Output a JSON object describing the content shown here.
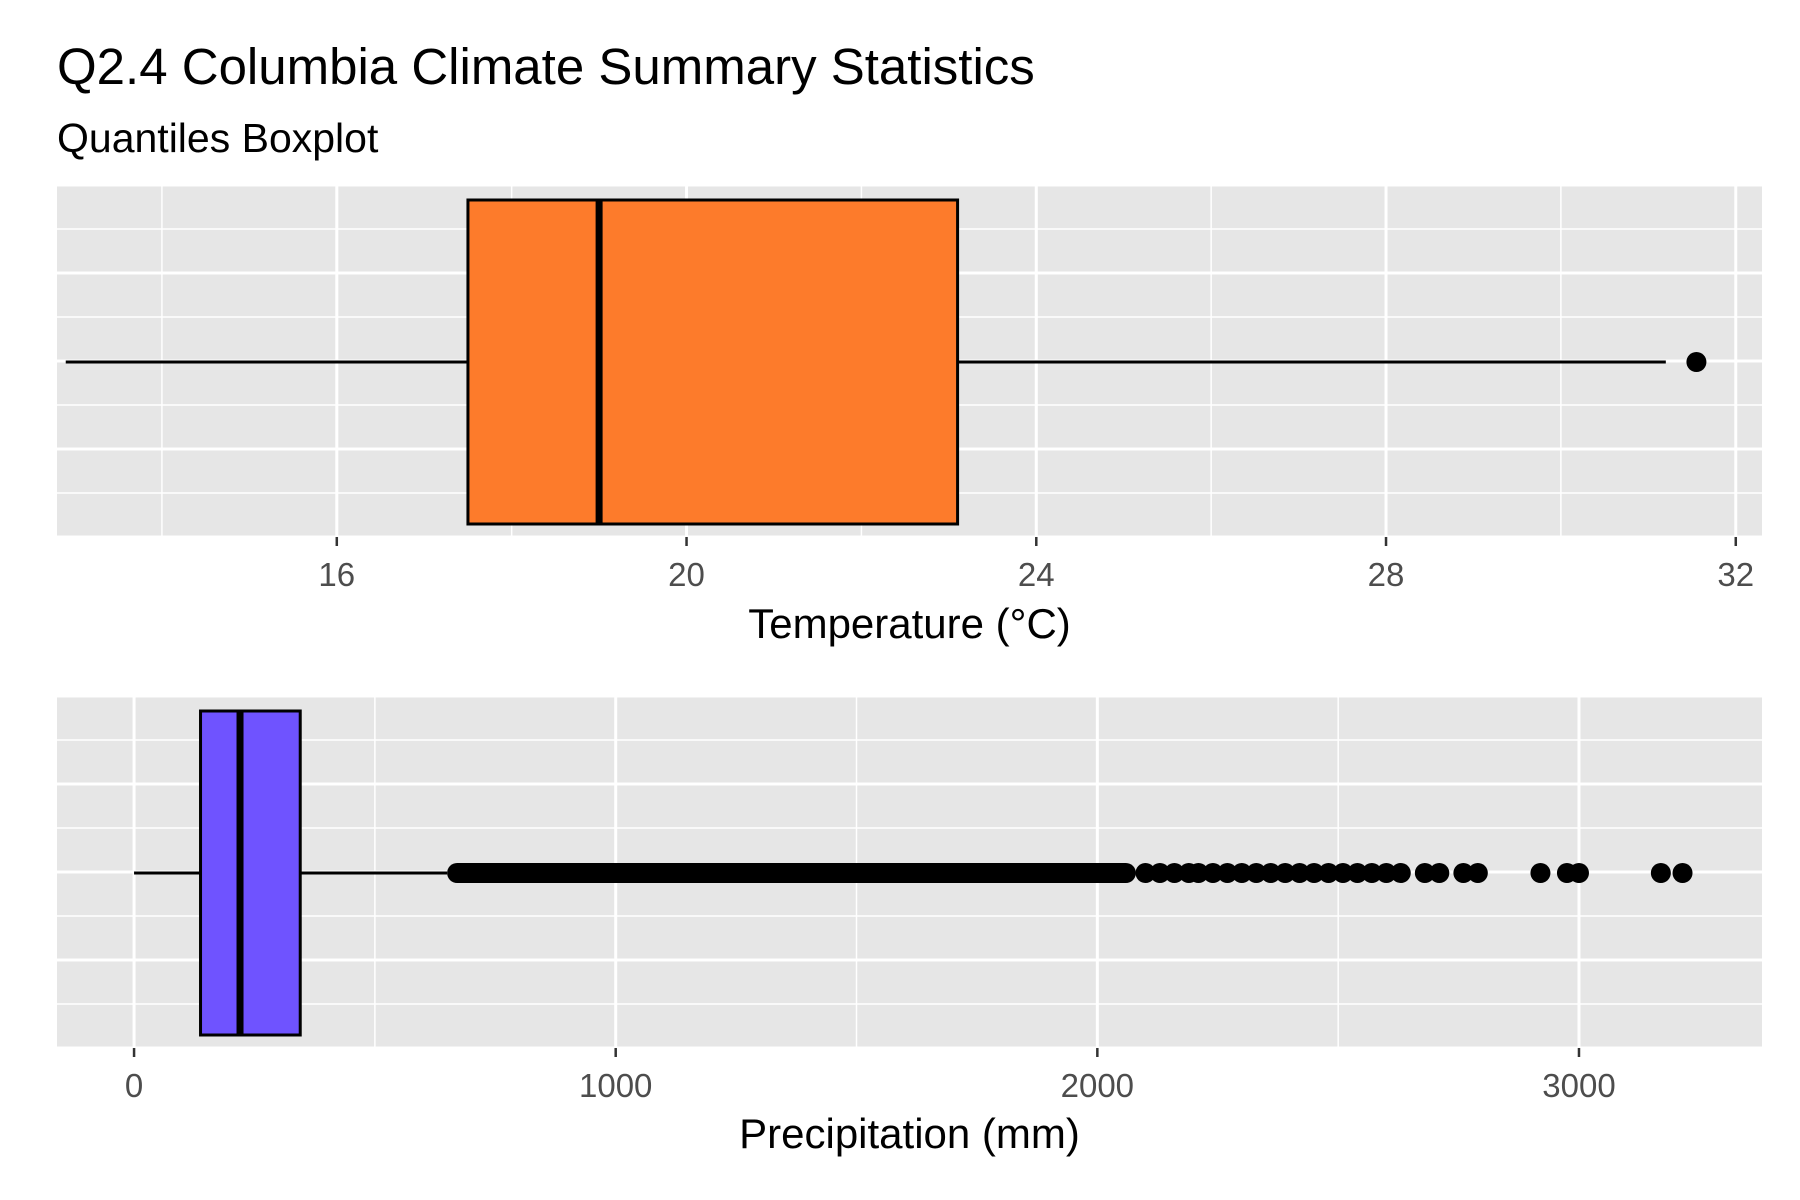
{
  "title": "Q2.4 Columbia Climate Summary Statistics",
  "subtitle": "Quantiles Boxplot",
  "colors": {
    "panel_bg": "#e6e6e6",
    "grid": "#ffffff",
    "temperature_box": "#fd7b2b",
    "precipitation_box": "#6f53ff",
    "outline": "#000000"
  },
  "chart_data": [
    {
      "type": "boxplot",
      "orientation": "horizontal",
      "xlabel": "Temperature (°C)",
      "xlim": [
        12.8,
        32.3
      ],
      "ticks": [
        16,
        20,
        24,
        28,
        32
      ],
      "tick_labels": [
        "16",
        "20",
        "24",
        "28",
        "32"
      ],
      "grid": true,
      "color": "#fd7b2b",
      "whisker_low": 12.9,
      "q1": 17.5,
      "median": 19.0,
      "q3": 23.1,
      "whisker_high": 31.2,
      "outliers": [
        31.55
      ]
    },
    {
      "type": "boxplot",
      "orientation": "horizontal",
      "xlabel": "Precipitation (mm)",
      "xlim": [
        -160,
        3380
      ],
      "ticks": [
        0,
        1000,
        2000,
        3000
      ],
      "tick_labels": [
        "0",
        "1000",
        "2000",
        "3000"
      ],
      "grid": true,
      "color": "#6f53ff",
      "whisker_low": 0,
      "q1": 138,
      "median": 220,
      "q3": 345,
      "whisker_high": 650,
      "outlier_band": [
        650,
        2080
      ],
      "outliers": [
        2100,
        2130,
        2160,
        2190,
        2210,
        2240,
        2270,
        2300,
        2330,
        2360,
        2390,
        2420,
        2450,
        2480,
        2510,
        2540,
        2570,
        2600,
        2630,
        2680,
        2710,
        2760,
        2790,
        2920,
        2975,
        3000,
        3170,
        3215
      ]
    }
  ]
}
